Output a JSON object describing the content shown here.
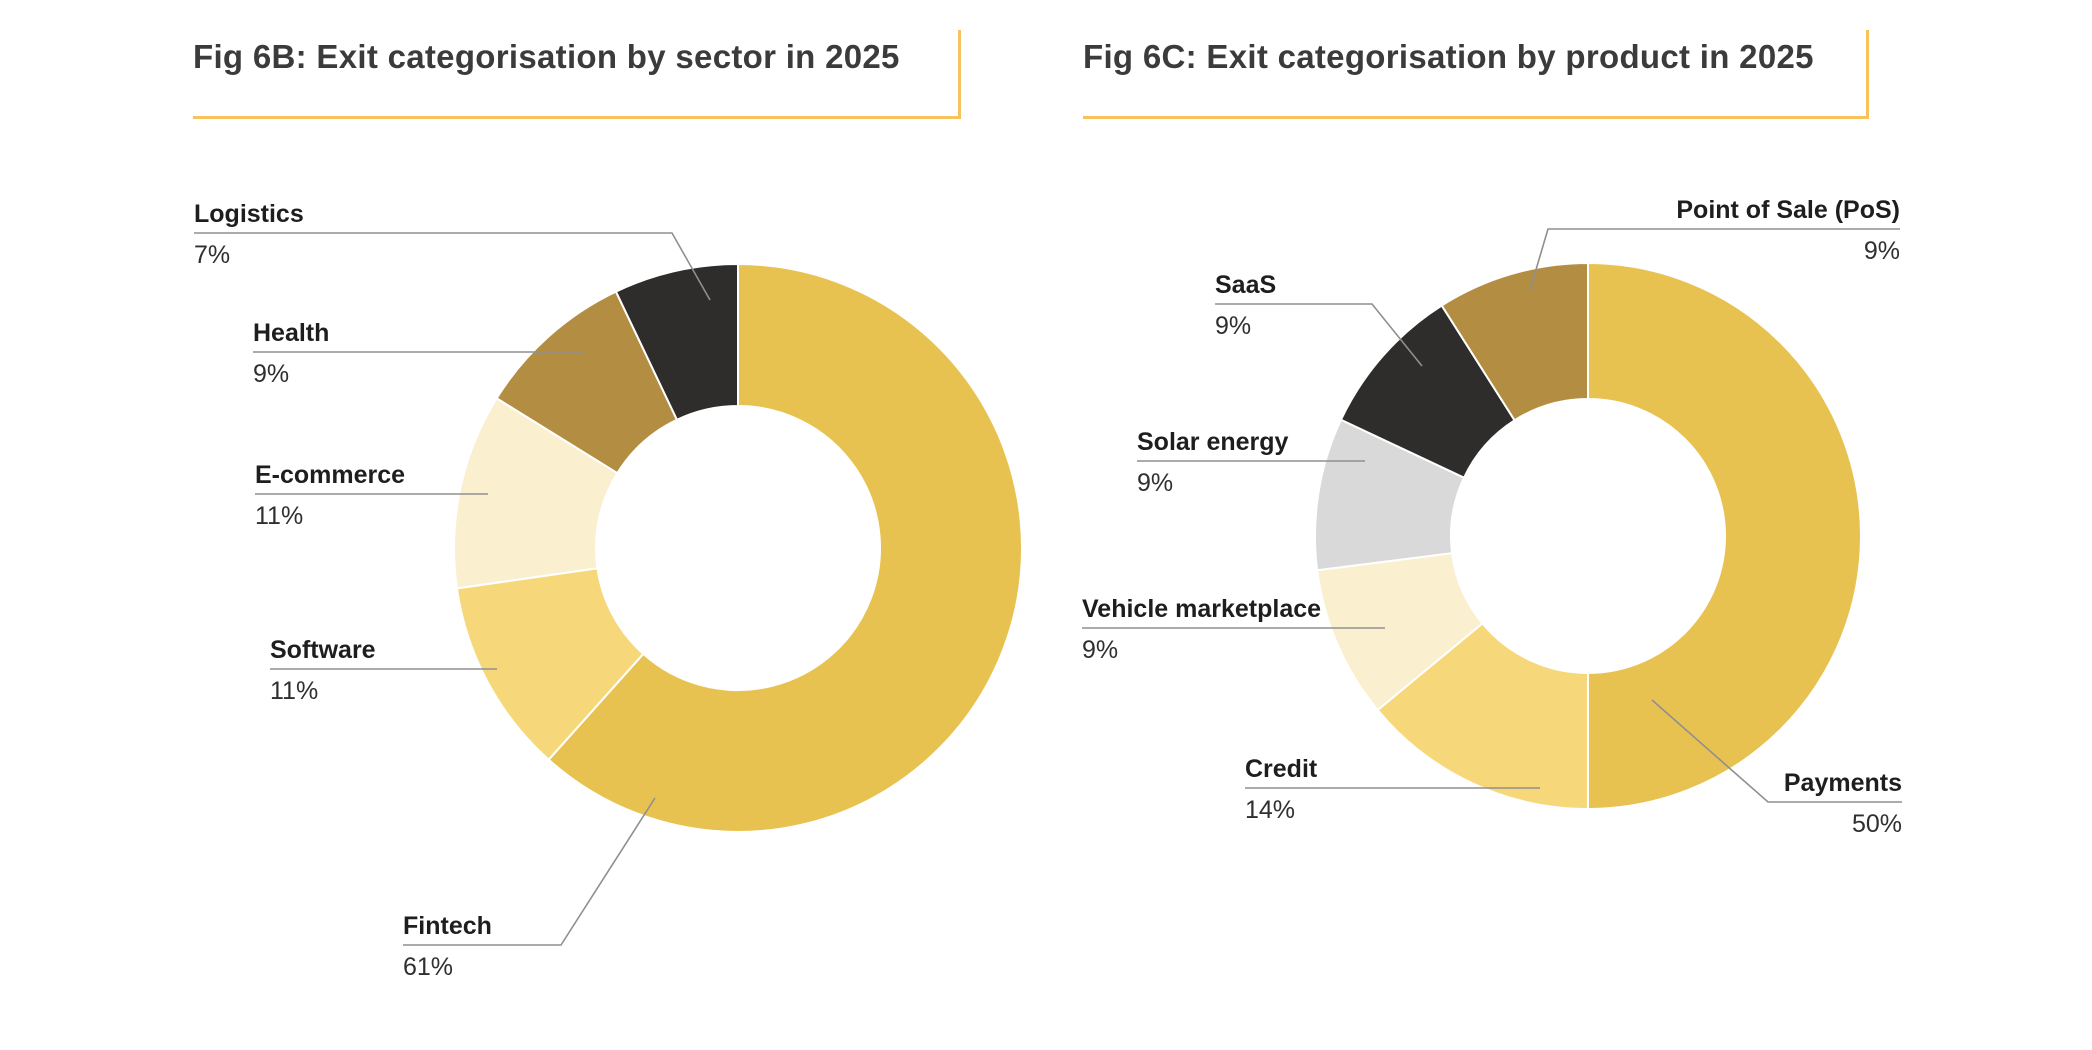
{
  "page": {
    "background": "#ffffff"
  },
  "accent_color": "#f7c25c",
  "leader_line_color": "#8f8f8f",
  "chart_data": [
    {
      "type": "pie",
      "donut": true,
      "title": "Fig 6B: Exit categorisation by sector in 2025",
      "legend_position": "callout-labels",
      "direction": "clockwise",
      "start_angle_deg": 0,
      "slices": [
        {
          "label": "Fintech",
          "value": 61,
          "pct": "61%",
          "color": "#e8c251"
        },
        {
          "label": "Software",
          "value": 11,
          "pct": "11%",
          "color": "#f6d87b"
        },
        {
          "label": "E-commerce",
          "value": 11,
          "pct": "11%",
          "color": "#faf0d0"
        },
        {
          "label": "Health",
          "value": 9,
          "pct": "9%",
          "color": "#b38e42"
        },
        {
          "label": "Logistics",
          "value": 7,
          "pct": "7%",
          "color": "#2e2d2b"
        }
      ]
    },
    {
      "type": "pie",
      "donut": true,
      "title": "Fig 6C: Exit categorisation by product in 2025",
      "legend_position": "callout-labels",
      "direction": "clockwise",
      "start_angle_deg": 0,
      "slices": [
        {
          "label": "Payments",
          "value": 50,
          "pct": "50%",
          "color": "#e8c251"
        },
        {
          "label": "Credit",
          "value": 14,
          "pct": "14%",
          "color": "#f6d87b"
        },
        {
          "label": "Vehicle marketplace",
          "value": 9,
          "pct": "9%",
          "color": "#faf0d0"
        },
        {
          "label": "Solar energy",
          "value": 9,
          "pct": "9%",
          "color": "#d9d9d9"
        },
        {
          "label": "SaaS",
          "value": 9,
          "pct": "9%",
          "color": "#2e2d2b"
        },
        {
          "label": "Point of Sale (PoS)",
          "value": 9,
          "pct": "9%",
          "color": "#b38e42"
        }
      ]
    }
  ]
}
